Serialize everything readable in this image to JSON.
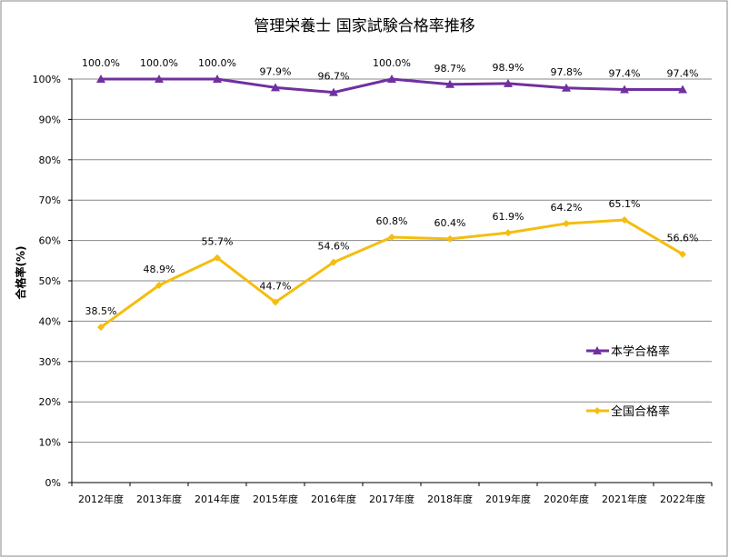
{
  "chart_data": {
    "type": "line",
    "title": "管理栄養士 国家試験合格率推移",
    "xlabel": "",
    "ylabel": "合格率(%)",
    "ylim": [
      0,
      100
    ],
    "yticks": [
      0,
      10,
      20,
      30,
      40,
      50,
      60,
      70,
      80,
      90,
      100
    ],
    "ytick_labels": [
      "0%",
      "10%",
      "20%",
      "30%",
      "40%",
      "50%",
      "60%",
      "70%",
      "80%",
      "90%",
      "100%"
    ],
    "grid": true,
    "legend_position": "right",
    "categories": [
      "2012年度",
      "2013年度",
      "2014年度",
      "2015年度",
      "2016年度",
      "2017年度",
      "2018年度",
      "2019年度",
      "2020年度",
      "2021年度",
      "2022年度"
    ],
    "series": [
      {
        "name": "本学合格率",
        "color": "#7030A0",
        "marker": "triangle",
        "values": [
          100.0,
          100.0,
          100.0,
          97.9,
          96.7,
          100.0,
          98.7,
          98.9,
          97.8,
          97.4,
          97.4
        ],
        "labels": [
          "100.0%",
          "100.0%",
          "100.0%",
          "97.9%",
          "96.7%",
          "100.0%",
          "98.7%",
          "98.9%",
          "97.8%",
          "97.4%",
          "97.4%"
        ]
      },
      {
        "name": "全国合格率",
        "color": "#F5BD0E",
        "marker": "diamond",
        "values": [
          38.5,
          48.9,
          55.7,
          44.7,
          54.6,
          60.8,
          60.4,
          61.9,
          64.2,
          65.1,
          56.6
        ],
        "labels": [
          "38.5%",
          "48.9%",
          "55.7%",
          "44.7%",
          "54.6%",
          "60.8%",
          "60.4%",
          "61.9%",
          "64.2%",
          "65.1%",
          "56.6%"
        ]
      }
    ]
  }
}
